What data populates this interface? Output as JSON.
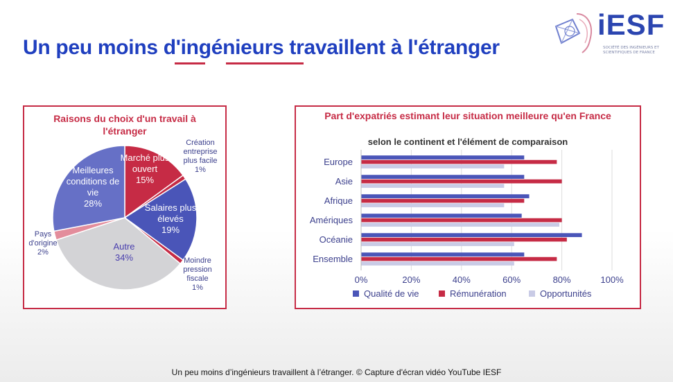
{
  "page": {
    "title_parts": [
      "Un peu moins ",
      "d'ing",
      "é",
      "nieurs",
      " travaillent à l'étranger"
    ],
    "caption": "Un peu moins d’ingénieurs travaillent à l’étranger. © Capture d'écran vidéo YouTube IESF"
  },
  "logo": {
    "name": "iESF",
    "subtitle": "Société des ingénieurs et scientifiques de France"
  },
  "colors": {
    "accent": "#c62b45",
    "title": "#1f3fbf",
    "qualite": "#4a55b8",
    "remuneration": "#c62b45",
    "opportunites": "#c9cbe6",
    "autre": "#d3d3d6",
    "pays": "#e38d9c"
  },
  "chart_data": [
    {
      "type": "pie",
      "title": "Raisons du choix d'un travail à l'étranger",
      "slices": [
        {
          "label": "Marché plus ouvert",
          "value": 15,
          "display": "15%",
          "color": "#c62b45"
        },
        {
          "label": "Création entreprise plus facile",
          "value": 1,
          "display": "1%",
          "color": "#c62b45"
        },
        {
          "label": "Salaires plus élevés",
          "value": 19,
          "display": "19%",
          "color": "#4a55b8"
        },
        {
          "label": "Moindre pression fiscale",
          "value": 1,
          "display": "1%",
          "color": "#c62b45"
        },
        {
          "label": "Autre",
          "value": 34,
          "display": "34%",
          "color": "#d3d3d6"
        },
        {
          "label": "Pays d'origine",
          "value": 2,
          "display": "2%",
          "color": "#e38d9c"
        },
        {
          "label": "Meilleures conditions de vie",
          "value": 28,
          "display": "28%",
          "color": "#6670c6"
        }
      ]
    },
    {
      "type": "bar",
      "orientation": "horizontal",
      "title": "Part d'expatriés estimant leur situation meilleure qu'en France",
      "subtitle": "selon le continent et l'élément de comparaison",
      "categories": [
        "Europe",
        "Asie",
        "Afrique",
        "Amériques",
        "Océanie",
        "Ensemble"
      ],
      "series": [
        {
          "name": "Qualité de vie",
          "values": [
            65,
            65,
            67,
            64,
            88,
            65
          ],
          "color": "#4a55b8"
        },
        {
          "name": "Rémunération",
          "values": [
            78,
            80,
            65,
            80,
            82,
            78
          ],
          "color": "#c62b45"
        },
        {
          "name": "Opportunités",
          "values": [
            57,
            57,
            57,
            79,
            61,
            61
          ],
          "color": "#c9cbe6"
        }
      ],
      "xticks": [
        "0%",
        "20%",
        "40%",
        "60%",
        "80%",
        "100%"
      ],
      "xlim": [
        0,
        100
      ],
      "grid": true,
      "legend": "bottom"
    }
  ]
}
